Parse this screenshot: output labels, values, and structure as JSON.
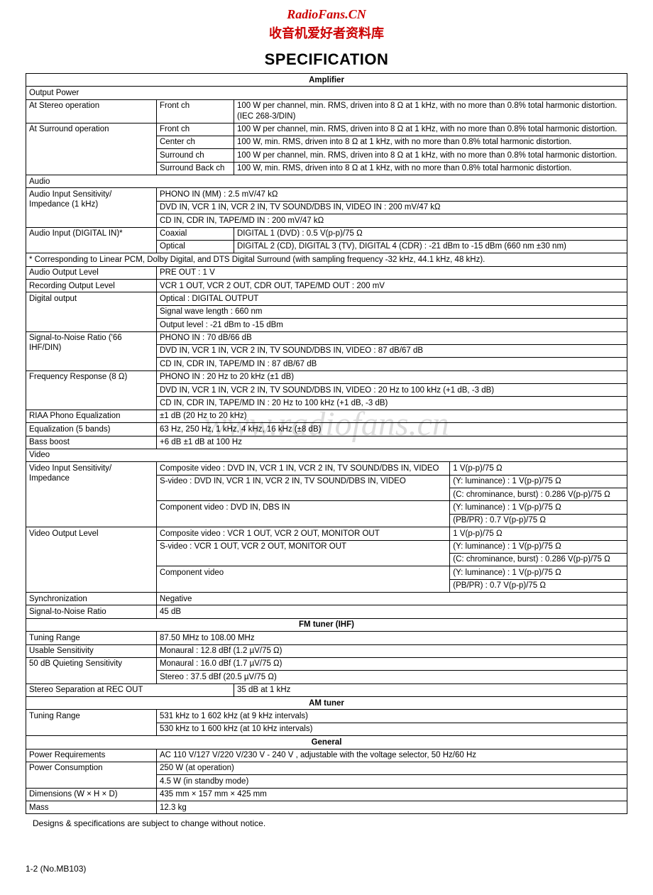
{
  "brand": {
    "en": "RadioFans.CN",
    "cn": "收音机爱好者资料库"
  },
  "watermark": "www.radiofans.cn",
  "title": "SPECIFICATION",
  "colors": {
    "brand_red": "#cc0000",
    "watermark_gray": "#dcdcdc",
    "border": "#000000",
    "bg": "#ffffff"
  },
  "sections": {
    "amp": {
      "header": "Amplifier",
      "output_power_hdr": "Output Power",
      "stereo_label": "At Stereo operation",
      "stereo_front_ch": "Front ch",
      "stereo_front_val": "100 W per channel, min. RMS, driven into 8 Ω at 1 kHz, with no more than 0.8% total harmonic distortion. (IEC 268-3/DIN)",
      "surround_label": "At Surround operation",
      "sur_front_ch": "Front ch",
      "sur_front_val": "100 W per channel, min. RMS, driven into 8 Ω at 1 kHz, with no more than 0.8% total harmonic distortion.",
      "sur_center_ch": "Center ch",
      "sur_center_val": "100 W, min. RMS, driven into 8 Ω at 1 kHz, with no more than 0.8% total harmonic distortion.",
      "sur_surround_ch": "Surround ch",
      "sur_surround_val": "100 W per channel, min. RMS, driven into 8 Ω at 1 kHz, with no more than 0.8% total harmonic distortion.",
      "sur_back_ch": "Surround Back ch",
      "sur_back_val": "100 W, min. RMS, driven into 8 Ω at 1 kHz, with no more than 0.8% total harmonic distortion.",
      "audio_hdr": "Audio",
      "ain_sens_label": "Audio Input Sensitivity/ Impedance (1 kHz)",
      "ain_phono": "PHONO IN (MM) : 2.5 mV/47 kΩ",
      "ain_dvd": "DVD IN, VCR 1 IN, VCR 2 IN, TV SOUND/DBS IN, VIDEO IN : 200 mV/47 kΩ",
      "ain_cd": "CD IN, CDR IN, TAPE/MD IN : 200 mV/47 kΩ",
      "ain_digital_label": "Audio Input (DIGITAL IN)*",
      "ain_coax": "Coaxial",
      "ain_coax_val": "DIGITAL 1 (DVD) : 0.5 V(p-p)/75 Ω",
      "ain_opt": "Optical",
      "ain_opt_val": "DIGITAL 2 (CD), DIGITAL 3 (TV), DIGITAL 4 (CDR) : -21 dBm to -15 dBm (660 nm ±30 nm)",
      "pcm_note": "* Corresponding to Linear PCM, Dolby Digital, and DTS Digital Surround (with sampling frequency -32 kHz, 44.1 kHz, 48 kHz).",
      "aout_label": "Audio Output Level",
      "aout_val": "PRE OUT : 1 V",
      "rec_label": "Recording Output Level",
      "rec_val": "VCR 1 OUT, VCR 2 OUT, CDR OUT, TAPE/MD OUT : 200 mV",
      "digout_label": "Digital output",
      "digout_opt": "Optical : DIGITAL OUTPUT",
      "digout_wav": "Signal wave length : 660 nm",
      "digout_lvl": "Output level : -21 dBm to -15 dBm",
      "snr_label": "Signal-to-Noise Ratio ('66 IHF/DIN)",
      "snr_phono": "PHONO IN : 70 dB/66 dB",
      "snr_dvd": "DVD IN, VCR 1 IN, VCR 2 IN, TV SOUND/DBS IN, VIDEO : 87 dB/67 dB",
      "snr_cd": "CD IN, CDR IN, TAPE/MD IN : 87 dB/67 dB",
      "freq_label": "Frequency Response (8 Ω)",
      "freq_phono": "PHONO IN : 20 Hz to 20 kHz (±1 dB)",
      "freq_dvd": "DVD IN, VCR 1 IN, VCR 2 IN, TV SOUND/DBS IN, VIDEO : 20 Hz to 100 kHz (+1 dB, -3 dB)",
      "freq_cd": "CD IN, CDR IN, TAPE/MD IN : 20 Hz to 100 kHz (+1 dB, -3 dB)",
      "riaa_label": "RIAA Phono Equalization",
      "riaa_val": "±1 dB (20 Hz to 20 kHz)",
      "eq_label": "Equalization (5 bands)",
      "eq_val": "63 Hz, 250 Hz, 1 kHz, 4 kHz, 16 kHz (±8 dB)",
      "bass_label": "Bass boost",
      "bass_val": "+6 dB ±1 dB at 100 Hz",
      "video_hdr": "Video",
      "vin_label": "Video Input Sensitivity/ Impedance",
      "vin_comp": "Composite video : DVD IN, VCR 1 IN, VCR 2 IN, TV SOUND/DBS IN, VIDEO",
      "vin_comp_val": "1 V(p-p)/75 Ω",
      "vin_svid": "S-video : DVD IN, VCR 1 IN, VCR 2 IN, TV SOUND/DBS IN, VIDEO",
      "vin_svid_y": "(Y: luminance) : 1 V(p-p)/75 Ω",
      "vin_svid_c": "(C: chrominance, burst) : 0.286 V(p-p)/75 Ω",
      "vin_compnt": "Component video : DVD IN, DBS IN",
      "vin_compnt_y": "(Y: luminance) : 1 V(p-p)/75 Ω",
      "vin_compnt_pb": "(PB/PR) : 0.7 V(p-p)/75 Ω",
      "vout_label": "Video Output Level",
      "vout_comp": "Composite video : VCR 1 OUT, VCR 2 OUT, MONITOR OUT",
      "vout_comp_val": "1 V(p-p)/75 Ω",
      "vout_svid": "S-video : VCR 1 OUT, VCR 2 OUT, MONITOR OUT",
      "vout_svid_y": "(Y: luminance) : 1 V(p-p)/75 Ω",
      "vout_svid_c": "(C: chrominance, burst) : 0.286 V(p-p)/75 Ω",
      "vout_compnt": "Component video",
      "vout_compnt_y": "(Y: luminance) : 1 V(p-p)/75 Ω",
      "vout_compnt_pb": "(PB/PR) : 0.7 V(p-p)/75 Ω",
      "sync_label": "Synchronization",
      "sync_val": "Negative",
      "vsnr_label": "Signal-to-Noise Ratio",
      "vsnr_val": "45 dB"
    },
    "fm": {
      "header": "FM tuner (IHF)",
      "range_label": "Tuning Range",
      "range_val": "87.50 MHz to 108.00 MHz",
      "usable_label": "Usable Sensitivity",
      "usable_val": "Monaural : 12.8 dBf (1.2 µV/75 Ω)",
      "quiet_label": "50 dB Quieting Sensitivity",
      "quiet_mono": "Monaural : 16.0 dBf (1.7 µV/75 Ω)",
      "quiet_stereo": "Stereo : 37.5 dBf (20.5 µV/75 Ω)",
      "sep_label": "Stereo Separation at REC OUT",
      "sep_val": "35 dB at 1 kHz"
    },
    "am": {
      "header": "AM tuner",
      "range_label": "Tuning Range",
      "range_9": "531 kHz to 1 602 kHz (at 9 kHz intervals)",
      "range_10": "530 kHz to 1 600 kHz (at 10 kHz intervals)"
    },
    "gen": {
      "header": "General",
      "power_req_label": "Power Requirements",
      "power_req_val": "AC 110 V/127 V/220 V/230 V - 240 V , adjustable with the voltage selector, 50 Hz/60 Hz",
      "power_cons_label": "Power Consumption",
      "power_cons_op": "250 W (at operation)",
      "power_cons_sb": "4.5 W (in standby mode)",
      "dim_label": "Dimensions (W × H × D)",
      "dim_val": "435 mm × 157 mm × 425 mm",
      "mass_label": "Mass",
      "mass_val": "12.3 kg"
    }
  },
  "footnote": "Designs & specifications are subject to change without notice.",
  "footer": "1-2 (No.MB103)"
}
